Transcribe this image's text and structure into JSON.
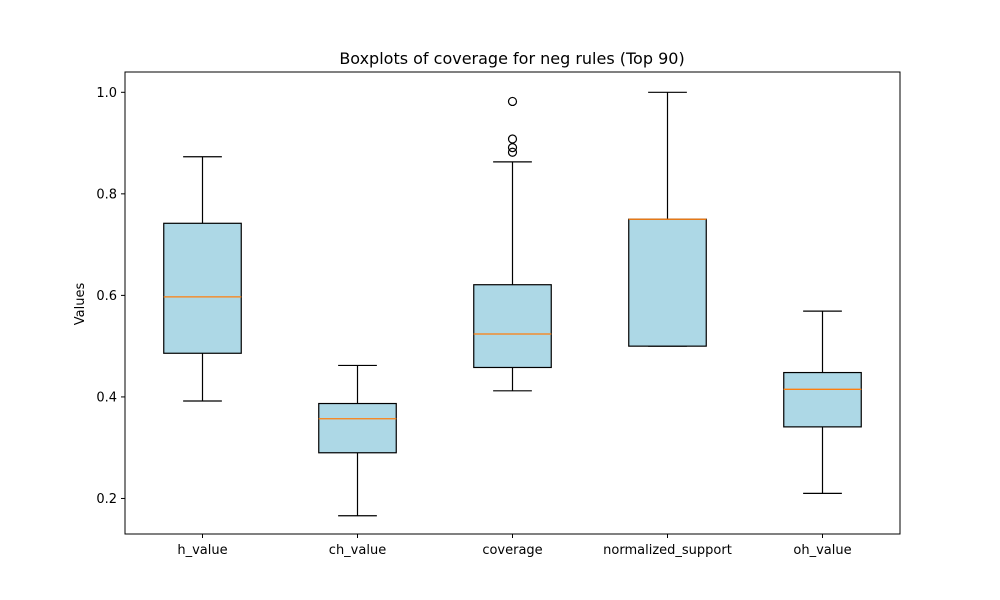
{
  "chart_data": {
    "type": "box",
    "title": "Boxplots of coverage for neg rules (Top 90)",
    "xlabel": "",
    "ylabel": "Values",
    "ylim": [
      0.13,
      1.04
    ],
    "yticks": [
      0.2,
      0.4,
      0.6,
      0.8,
      1.0
    ],
    "ytick_labels": [
      "0.2",
      "0.4",
      "0.6",
      "0.8",
      "1.0"
    ],
    "categories": [
      "h_value",
      "ch_value",
      "coverage",
      "normalized_support",
      "oh_value"
    ],
    "boxes": [
      {
        "name": "h_value",
        "whisker_low": 0.392,
        "q1": 0.486,
        "median": 0.597,
        "q3": 0.742,
        "whisker_high": 0.873,
        "outliers": []
      },
      {
        "name": "ch_value",
        "whisker_low": 0.166,
        "q1": 0.29,
        "median": 0.357,
        "q3": 0.387,
        "whisker_high": 0.462,
        "outliers": []
      },
      {
        "name": "coverage",
        "whisker_low": 0.412,
        "q1": 0.458,
        "median": 0.524,
        "q3": 0.621,
        "whisker_high": 0.863,
        "outliers": [
          0.882,
          0.891,
          0.908,
          0.982
        ]
      },
      {
        "name": "normalized_support",
        "whisker_low": 0.5,
        "q1": 0.5,
        "median": 0.75,
        "q3": 0.75,
        "whisker_high": 1.0,
        "outliers": []
      },
      {
        "name": "oh_value",
        "whisker_low": 0.21,
        "q1": 0.341,
        "median": 0.415,
        "q3": 0.448,
        "whisker_high": 0.569,
        "outliers": []
      }
    ],
    "colors": {
      "box_fill": "#add8e6",
      "median": "#ff7f0e",
      "edge": "#000000"
    },
    "grid": false,
    "legend": "none"
  }
}
